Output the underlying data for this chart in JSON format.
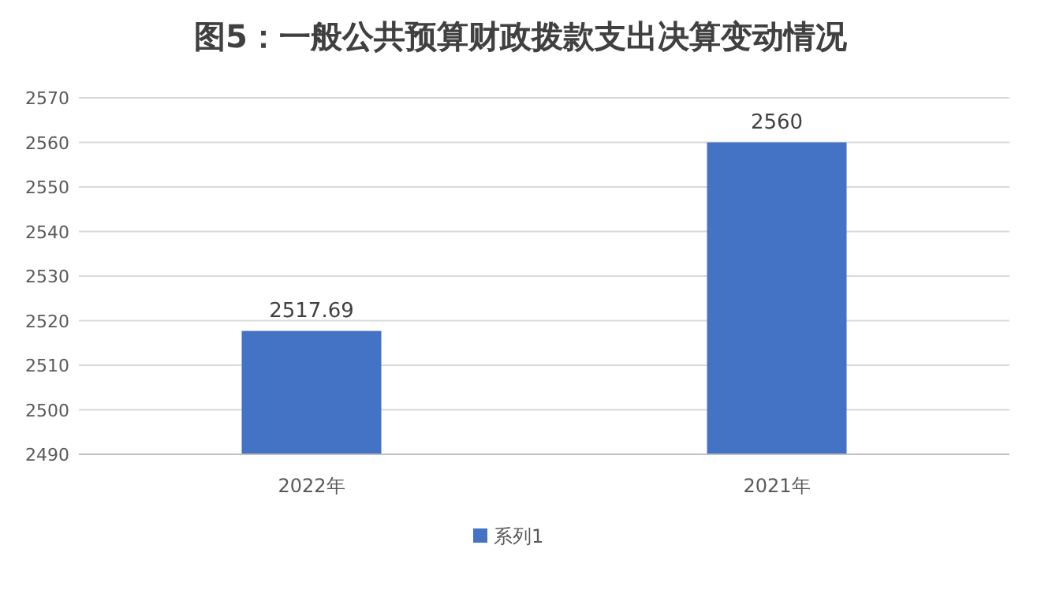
{
  "chart_data": {
    "type": "bar",
    "title": "图5：一般公共预算财政拨款支出决算变动情况",
    "categories": [
      "2022年",
      "2021年"
    ],
    "series": [
      {
        "name": "系列1",
        "color": "#4472c4",
        "values": [
          2517.69,
          2560
        ]
      }
    ],
    "ylim": [
      2490,
      2570
    ],
    "yticks": [
      2490,
      2500,
      2510,
      2520,
      2530,
      2540,
      2550,
      2560,
      2570
    ],
    "grid": "y",
    "legend": "bottom",
    "data_labels": true
  }
}
